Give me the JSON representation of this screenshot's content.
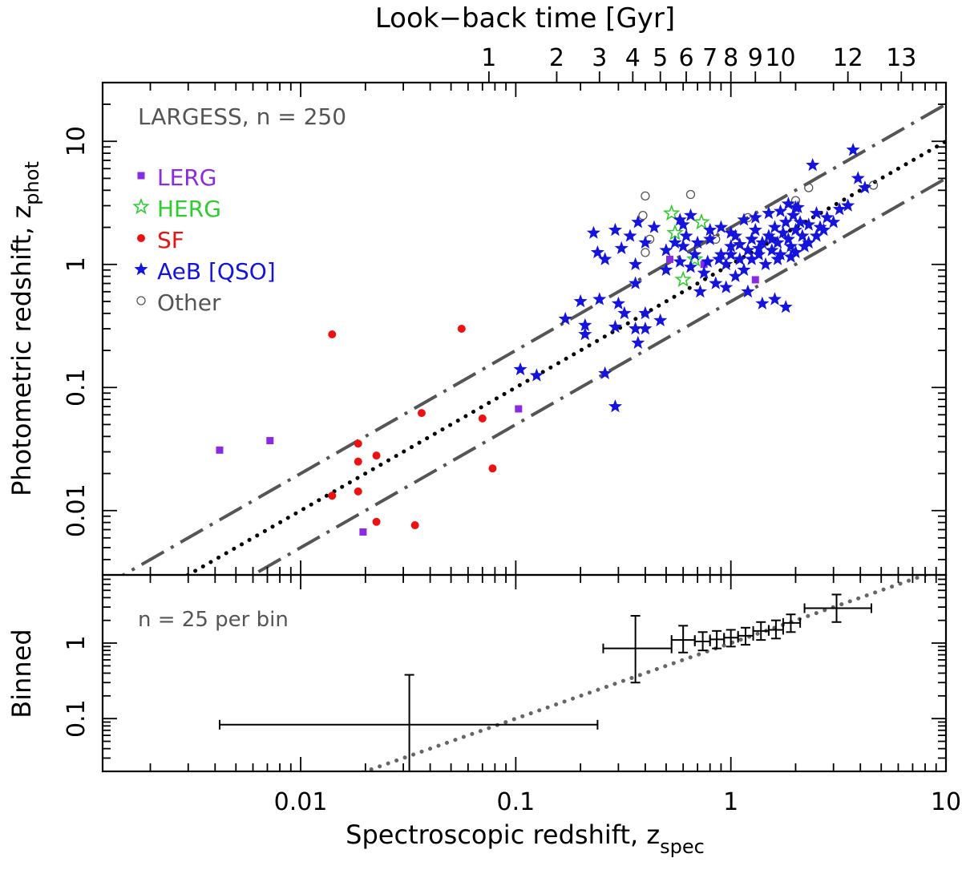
{
  "chart_data": [
    {
      "type": "scatter",
      "panel": "main",
      "xscale": "log",
      "yscale": "log",
      "xlim": [
        0.0012,
        10.0
      ],
      "ylim": [
        0.003,
        30.0
      ],
      "ylabel_main": "Photometric redshift, z",
      "ylabel_sub": "phot",
      "annotation": "LARGESS, n = 250",
      "top_axis": {
        "label": "Look−back time [Gyr]",
        "ticks": [
          {
            "label": "1",
            "z": 0.075
          },
          {
            "label": "2",
            "z": 0.155
          },
          {
            "label": "3",
            "z": 0.245
          },
          {
            "label": "4",
            "z": 0.35
          },
          {
            "label": "5",
            "z": 0.47
          },
          {
            "label": "6",
            "z": 0.62
          },
          {
            "label": "7",
            "z": 0.8
          },
          {
            "label": "8",
            "z": 1.0
          },
          {
            "label": "9",
            "z": 1.3
          },
          {
            "label": "10",
            "z": 1.7
          },
          {
            "label": "12",
            "z": 3.5
          },
          {
            "label": "13",
            "z": 6.2
          }
        ]
      },
      "x_ticks": [
        {
          "value": 0.01,
          "label": "0.01"
        },
        {
          "value": 0.1,
          "label": "0.1"
        },
        {
          "value": 1,
          "label": "1"
        },
        {
          "value": 10,
          "label": "10"
        }
      ],
      "y_ticks": [
        {
          "value": 0.01,
          "label": "0.01"
        },
        {
          "value": 0.1,
          "label": "0.1"
        },
        {
          "value": 1,
          "label": "1"
        },
        {
          "value": 10,
          "label": "10"
        }
      ],
      "reference_lines": [
        {
          "name": "one-to-one",
          "style": "dotted",
          "factor": 1.0,
          "color": "#000000"
        },
        {
          "name": "upper-bound",
          "style": "dash-dot",
          "factor": 2.0,
          "color": "#555555"
        },
        {
          "name": "lower-bound",
          "style": "dash-dot",
          "factor": 0.5,
          "color": "#555555"
        }
      ],
      "legend": [
        {
          "label": "LERG",
          "marker": "square",
          "color": "#8a2be2"
        },
        {
          "label": "HERG",
          "marker": "open-star",
          "color": "#2ecc2e"
        },
        {
          "label": "SF",
          "marker": "circle",
          "color": "#ee1111"
        },
        {
          "label": "AeB [QSO]",
          "marker": "star",
          "color": "#1414dd"
        },
        {
          "label": "Other",
          "marker": "open-circle",
          "color": "#555555"
        }
      ],
      "series": [
        {
          "name": "LERG",
          "marker": "square",
          "color": "#8a2be2",
          "points": [
            [
              0.0042,
              0.031
            ],
            [
              0.0072,
              0.037
            ],
            [
              0.0195,
              0.0067
            ],
            [
              0.103,
              0.067
            ],
            [
              0.52,
              1.1
            ],
            [
              0.75,
              1.0
            ],
            [
              1.3,
              0.75
            ]
          ]
        },
        {
          "name": "SF",
          "marker": "circle",
          "color": "#ee1111",
          "points": [
            [
              0.014,
              0.27
            ],
            [
              0.056,
              0.3
            ],
            [
              0.0365,
              0.062
            ],
            [
              0.07,
              0.056
            ],
            [
              0.0185,
              0.035
            ],
            [
              0.0185,
              0.025
            ],
            [
              0.0225,
              0.028
            ],
            [
              0.0185,
              0.0143
            ],
            [
              0.014,
              0.0132
            ],
            [
              0.0225,
              0.0081
            ],
            [
              0.034,
              0.0076
            ],
            [
              0.078,
              0.022
            ]
          ]
        },
        {
          "name": "HERG",
          "marker": "open-star",
          "color": "#2ecc2e",
          "points": [
            [
              0.53,
              2.6
            ],
            [
              0.73,
              2.2
            ],
            [
              0.55,
              1.8
            ],
            [
              0.6,
              0.75
            ],
            [
              0.68,
              1.1
            ]
          ]
        },
        {
          "name": "Other",
          "marker": "open-circle",
          "color": "#555555",
          "points": [
            [
              0.4,
              3.6
            ],
            [
              0.65,
              3.7
            ],
            [
              0.39,
              2.5
            ],
            [
              0.42,
              1.6
            ],
            [
              0.4,
              1.25
            ],
            [
              0.85,
              1.6
            ],
            [
              2.0,
              3.3
            ],
            [
              2.3,
              4.2
            ],
            [
              4.6,
              4.4
            ],
            [
              1.2,
              2.4
            ]
          ]
        },
        {
          "name": "AeB [QSO]",
          "marker": "star",
          "color": "#1414dd",
          "points": [
            [
              0.37,
              2.2
            ],
            [
              0.44,
              2.0
            ],
            [
              0.6,
              2.1
            ],
            [
              0.23,
              1.8
            ],
            [
              0.29,
              1.9
            ],
            [
              0.34,
              1.7
            ],
            [
              0.4,
              1.5
            ],
            [
              0.31,
              1.35
            ],
            [
              0.24,
              1.25
            ],
            [
              0.26,
              1.1
            ],
            [
              0.36,
              1.0
            ],
            [
              0.5,
              1.3
            ],
            [
              0.36,
              0.7
            ],
            [
              0.2,
              0.5
            ],
            [
              0.245,
              0.52
            ],
            [
              0.3,
              0.48
            ],
            [
              0.17,
              0.36
            ],
            [
              0.21,
              0.32
            ],
            [
              0.32,
              0.4
            ],
            [
              0.4,
              0.4
            ],
            [
              0.47,
              0.35
            ],
            [
              0.29,
              0.31
            ],
            [
              0.36,
              0.3
            ],
            [
              0.4,
              0.3
            ],
            [
              0.37,
              0.23
            ],
            [
              0.21,
              0.27
            ],
            [
              0.105,
              0.14
            ],
            [
              0.125,
              0.125
            ],
            [
              0.26,
              0.13
            ],
            [
              0.29,
              0.07
            ],
            [
              0.55,
              1.5
            ],
            [
              0.6,
              1.4
            ],
            [
              0.68,
              1.2
            ],
            [
              0.58,
              1.05
            ],
            [
              0.65,
              0.95
            ],
            [
              0.75,
              0.85
            ],
            [
              0.7,
              1.5
            ],
            [
              0.8,
              1.6
            ],
            [
              0.9,
              1.2
            ],
            [
              0.95,
              1.0
            ],
            [
              1.0,
              1.4
            ],
            [
              1.05,
              1.7
            ],
            [
              1.1,
              1.1
            ],
            [
              1.15,
              0.9
            ],
            [
              1.2,
              1.3
            ],
            [
              1.25,
              1.6
            ],
            [
              1.3,
              1.9
            ],
            [
              1.35,
              1.2
            ],
            [
              1.4,
              1.5
            ],
            [
              1.45,
              1.0
            ],
            [
              1.5,
              1.7
            ],
            [
              1.55,
              1.3
            ],
            [
              1.6,
              2.0
            ],
            [
              1.65,
              1.5
            ],
            [
              1.7,
              1.2
            ],
            [
              1.75,
              1.8
            ],
            [
              1.8,
              2.2
            ],
            [
              1.85,
              1.6
            ],
            [
              1.9,
              1.4
            ],
            [
              1.95,
              2.5
            ],
            [
              2.0,
              1.9
            ],
            [
              2.05,
              2.9
            ],
            [
              2.1,
              2.2
            ],
            [
              2.15,
              1.7
            ],
            [
              2.2,
              1.4
            ],
            [
              2.3,
              2.1
            ],
            [
              2.4,
              6.4
            ],
            [
              2.5,
              2.6
            ],
            [
              2.6,
              2.0
            ],
            [
              2.8,
              2.4
            ],
            [
              3.0,
              2.2
            ],
            [
              3.2,
              2.8
            ],
            [
              3.5,
              3.0
            ],
            [
              3.7,
              8.5
            ],
            [
              3.9,
              5.0
            ],
            [
              4.2,
              4.2
            ],
            [
              0.72,
              0.6
            ],
            [
              0.85,
              0.7
            ],
            [
              0.95,
              0.65
            ],
            [
              1.05,
              0.8
            ],
            [
              1.2,
              0.6
            ],
            [
              1.4,
              0.48
            ],
            [
              1.6,
              0.52
            ],
            [
              1.8,
              0.45
            ],
            [
              0.8,
              1.9
            ],
            [
              0.9,
              2.0
            ],
            [
              1.0,
              1.8
            ],
            [
              1.15,
              2.3
            ],
            [
              1.3,
              2.4
            ],
            [
              1.5,
              2.6
            ],
            [
              1.7,
              2.7
            ],
            [
              1.85,
              3.1
            ],
            [
              2.0,
              2.9
            ],
            [
              0.65,
              2.5
            ],
            [
              0.58,
              2.3
            ],
            [
              0.62,
              1.7
            ],
            [
              0.5,
              0.9
            ],
            [
              0.78,
              1.05
            ],
            [
              0.88,
              1.1
            ],
            [
              1.0,
              1.2
            ],
            [
              1.1,
              1.45
            ],
            [
              1.25,
              1.1
            ],
            [
              1.35,
              1.35
            ],
            [
              1.55,
              1.6
            ],
            [
              1.65,
              1.1
            ],
            [
              1.9,
              1.15
            ],
            [
              2.0,
              1.25
            ],
            [
              2.3,
              1.5
            ],
            [
              2.5,
              1.7
            ],
            [
              2.7,
              1.9
            ]
          ]
        }
      ]
    },
    {
      "type": "scatter",
      "panel": "binned",
      "xscale": "log",
      "yscale": "log",
      "xlim": [
        0.0012,
        10.0
      ],
      "ylim": [
        0.02,
        8.0
      ],
      "xlabel_main": "Spectroscopic redshift, z",
      "xlabel_sub": "spec",
      "ylabel": "Binned",
      "annotation": "n = 25 per bin",
      "y_ticks": [
        {
          "value": 0.1,
          "label": "0.1"
        },
        {
          "value": 1,
          "label": "1"
        }
      ],
      "reference_line": {
        "style": "dotted",
        "factor": 1.0,
        "color": "#666666"
      },
      "points": [
        {
          "x": 0.032,
          "y": 0.083,
          "xerr": [
            0.0042,
            0.24
          ],
          "yerr": [
            0.018,
            0.38
          ]
        },
        {
          "x": 0.36,
          "y": 0.85,
          "xerr": [
            0.255,
            0.53
          ],
          "yerr": [
            0.3,
            2.3
          ]
        },
        {
          "x": 0.6,
          "y": 1.1,
          "xerr": [
            0.53,
            0.68
          ],
          "yerr": [
            0.75,
            1.7
          ]
        },
        {
          "x": 0.74,
          "y": 1.05,
          "xerr": [
            0.68,
            0.8
          ],
          "yerr": [
            0.8,
            1.4
          ]
        },
        {
          "x": 0.86,
          "y": 1.12,
          "xerr": [
            0.8,
            0.93
          ],
          "yerr": [
            0.85,
            1.45
          ]
        },
        {
          "x": 1.0,
          "y": 1.18,
          "xerr": [
            0.93,
            1.08
          ],
          "yerr": [
            0.9,
            1.5
          ]
        },
        {
          "x": 1.17,
          "y": 1.25,
          "xerr": [
            1.08,
            1.27
          ],
          "yerr": [
            0.95,
            1.6
          ]
        },
        {
          "x": 1.38,
          "y": 1.45,
          "xerr": [
            1.27,
            1.5
          ],
          "yerr": [
            1.1,
            1.9
          ]
        },
        {
          "x": 1.62,
          "y": 1.5,
          "xerr": [
            1.5,
            1.75
          ],
          "yerr": [
            1.15,
            2.0
          ]
        },
        {
          "x": 1.9,
          "y": 1.85,
          "xerr": [
            1.75,
            2.1
          ],
          "yerr": [
            1.4,
            2.4
          ]
        },
        {
          "x": 3.1,
          "y": 2.9,
          "xerr": [
            2.2,
            4.5
          ],
          "yerr": [
            1.9,
            4.4
          ]
        }
      ]
    }
  ]
}
